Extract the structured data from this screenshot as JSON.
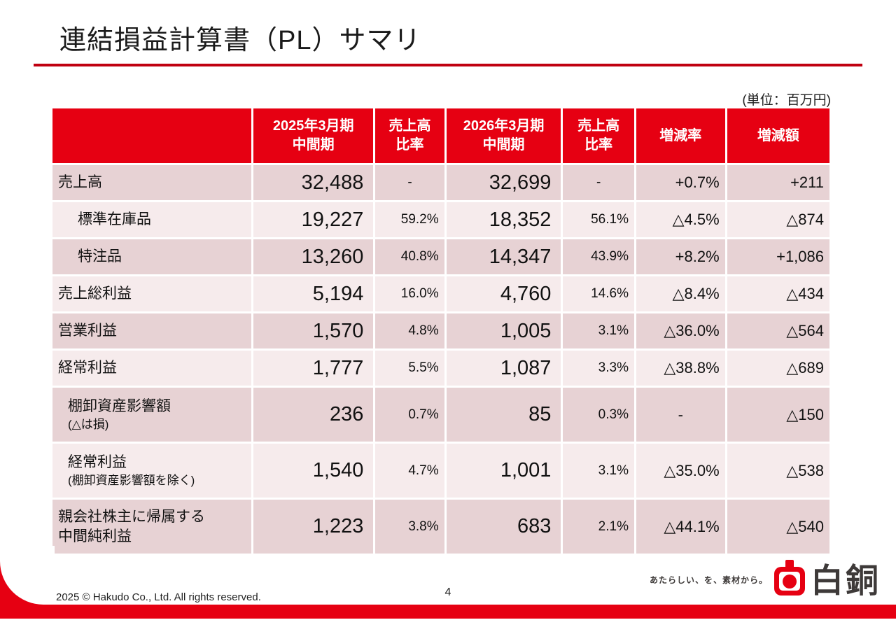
{
  "slide": {
    "title": "連結損益計算書（PL）サマリ",
    "unit_note": "(単位：百万円)",
    "page_number": "4",
    "copyright": "2025 © Hakudo Co., Ltd. All rights reserved."
  },
  "brand": {
    "tagline": "あたらしい、を、素材から。",
    "name": "白銅",
    "accent_color": "#e60012"
  },
  "table": {
    "headers": [
      "",
      "2025年3月期\n中間期",
      "売上高\n比率",
      "2026年3月期\n中間期",
      "売上高\n比率",
      "増減率",
      "増減額"
    ],
    "header_names": [
      "item",
      "period-2025",
      "sales-ratio-2025",
      "period-2026",
      "sales-ratio-2026",
      "change-rate",
      "change-amount"
    ],
    "rows": [
      {
        "label": "売上高",
        "indent": 0,
        "v2025": "32,488",
        "pct2025": "-",
        "v2026": "32,699",
        "pct2026": "-",
        "change_rate": "+0.7%",
        "change_amount": "+211"
      },
      {
        "label": "標準在庫品",
        "indent": 1,
        "v2025": "19,227",
        "pct2025": "59.2%",
        "v2026": "18,352",
        "pct2026": "56.1%",
        "change_rate": "△4.5%",
        "change_amount": "△874"
      },
      {
        "label": "特注品",
        "indent": 1,
        "v2025": "13,260",
        "pct2025": "40.8%",
        "v2026": "14,347",
        "pct2026": "43.9%",
        "change_rate": "+8.2%",
        "change_amount": "+1,086"
      },
      {
        "label": "売上総利益",
        "indent": 0,
        "v2025": "5,194",
        "pct2025": "16.0%",
        "v2026": "4,760",
        "pct2026": "14.6%",
        "change_rate": "△8.4%",
        "change_amount": "△434"
      },
      {
        "label": "営業利益",
        "indent": 0,
        "v2025": "1,570",
        "pct2025": "4.8%",
        "v2026": "1,005",
        "pct2026": "3.1%",
        "change_rate": "△36.0%",
        "change_amount": "△564"
      },
      {
        "label": "経常利益",
        "indent": 0,
        "v2025": "1,777",
        "pct2025": "5.5%",
        "v2026": "1,087",
        "pct2026": "3.3%",
        "change_rate": "△38.8%",
        "change_amount": "△689"
      },
      {
        "label": "棚卸資産影響額",
        "note": "(△は損)",
        "indent": 0.5,
        "v2025": "236",
        "pct2025": "0.7%",
        "v2026": "85",
        "pct2026": "0.3%",
        "change_rate": "-",
        "change_amount": "△150"
      },
      {
        "label": "経常利益",
        "note": "(棚卸資産影響額を除く)",
        "indent": 0.5,
        "v2025": "1,540",
        "pct2025": "4.7%",
        "v2026": "1,001",
        "pct2026": "3.1%",
        "change_rate": "△35.0%",
        "change_amount": "△538"
      },
      {
        "label": "親会社株主に帰属する\n中間純利益",
        "indent": 0,
        "v2025": "1,223",
        "pct2025": "3.8%",
        "v2026": "683",
        "pct2026": "2.1%",
        "change_rate": "△44.1%",
        "change_amount": "△540"
      }
    ]
  }
}
